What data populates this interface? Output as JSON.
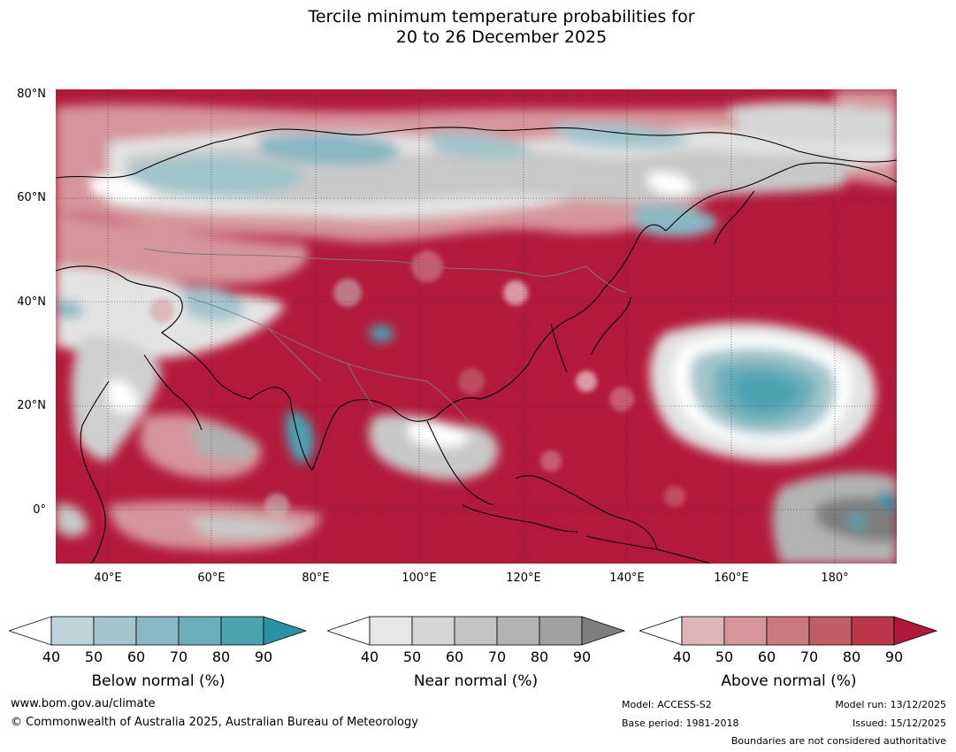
{
  "title": {
    "line1": "Tercile minimum temperature probabilities for",
    "line2": "20 to 26 December 2025"
  },
  "map": {
    "lat_labels": [
      "80°N",
      "60°N",
      "40°N",
      "20°N",
      "0°"
    ],
    "lon_labels": [
      "40°E",
      "60°E",
      "80°E",
      "100°E",
      "120°E",
      "140°E",
      "160°E",
      "180°"
    ]
  },
  "colorbars": [
    {
      "title": "Below normal (%)",
      "ticks": [
        "40",
        "50",
        "60",
        "70",
        "80",
        "90"
      ],
      "colors": [
        "#bfd3da",
        "#a3c5cc",
        "#88b8c3",
        "#6caeb9",
        "#4ca2b1",
        "#2b92a5"
      ]
    },
    {
      "title": "Near normal (%)",
      "ticks": [
        "40",
        "50",
        "60",
        "70",
        "80",
        "90"
      ],
      "colors": [
        "#e6e6e6",
        "#d6d6d6",
        "#c4c4c4",
        "#b3b3b3",
        "#a1a1a1",
        "#7e7e7e"
      ]
    },
    {
      "title": "Above normal (%)",
      "ticks": [
        "40",
        "50",
        "60",
        "70",
        "80",
        "90"
      ],
      "colors": [
        "#e0b5ba",
        "#d5959b",
        "#ca777f",
        "#c05e68",
        "#b93749",
        "#b1193a"
      ]
    }
  ],
  "footer": {
    "website": "www.bom.gov.au/climate",
    "copyright": "© Commonwealth of Australia 2025, Australian Bureau of Meteorology",
    "model": "Model: ACCESS-S2",
    "base_period": "Base period: 1981-2018",
    "model_run": "Model run: 13/12/2025",
    "issued": "Issued: 15/12/2025",
    "boundaries": "Boundaries are not considered authoritative"
  }
}
